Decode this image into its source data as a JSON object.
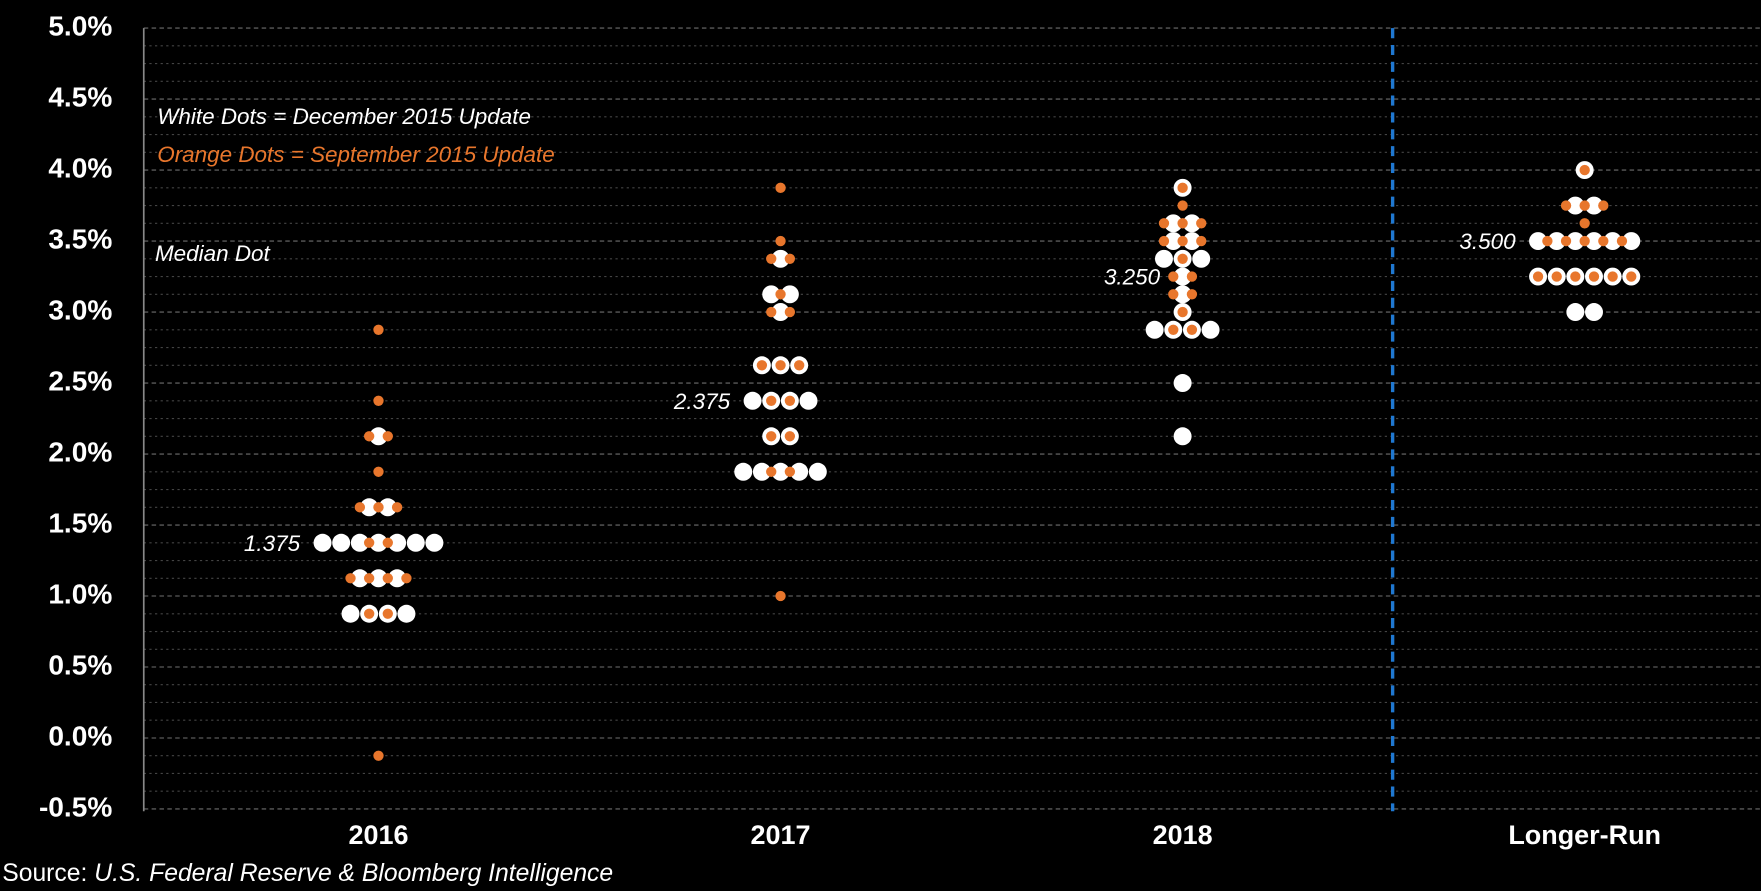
{
  "chart_data": {
    "type": "dot",
    "categories": [
      "2016",
      "2017",
      "2018",
      "Longer-Run"
    ],
    "series": [
      {
        "name": "White Dots = December 2015 Update",
        "color": "#ffffff",
        "values": [
          [
            2.125,
            1.625,
            1.625,
            1.375,
            1.375,
            1.375,
            1.375,
            1.375,
            1.375,
            1.375,
            1.125,
            1.125,
            1.125,
            0.875,
            0.875,
            0.875,
            0.875
          ],
          [
            3.375,
            3.125,
            3.125,
            3.0,
            2.625,
            2.625,
            2.625,
            2.375,
            2.375,
            2.375,
            2.375,
            2.125,
            2.125,
            1.875,
            1.875,
            1.875,
            1.875,
            1.875
          ],
          [
            3.875,
            3.625,
            3.625,
            3.5,
            3.5,
            3.375,
            3.375,
            3.375,
            3.25,
            3.125,
            3.0,
            2.875,
            2.875,
            2.875,
            2.875,
            2.5,
            2.125
          ],
          [
            4.0,
            3.75,
            3.75,
            3.5,
            3.5,
            3.5,
            3.5,
            3.5,
            3.5,
            3.25,
            3.25,
            3.25,
            3.25,
            3.25,
            3.25,
            3.0,
            3.0
          ]
        ]
      },
      {
        "name": "Orange Dots = September 2015 Update",
        "color": "#e8762c",
        "values": [
          [
            2.875,
            2.375,
            2.125,
            2.125,
            1.875,
            1.625,
            1.625,
            1.625,
            1.375,
            1.375,
            1.125,
            1.125,
            1.125,
            1.125,
            0.875,
            0.875,
            -0.125
          ],
          [
            3.875,
            3.5,
            3.375,
            3.375,
            3.125,
            3.0,
            3.0,
            2.625,
            2.625,
            2.625,
            2.375,
            2.375,
            2.125,
            2.125,
            1.875,
            1.875,
            1.0
          ],
          [
            3.875,
            3.75,
            3.625,
            3.625,
            3.625,
            3.5,
            3.5,
            3.5,
            3.375,
            3.25,
            3.25,
            3.125,
            3.125,
            3.0,
            2.875,
            2.875
          ],
          [
            4.0,
            3.75,
            3.75,
            3.75,
            3.625,
            3.5,
            3.5,
            3.5,
            3.5,
            3.5,
            3.25,
            3.25,
            3.25,
            3.25,
            3.25,
            3.25
          ]
        ]
      }
    ],
    "median_title": "Median Dot",
    "medians": [
      1.375,
      2.375,
      3.25,
      3.5
    ],
    "value_labels": [
      "1.375",
      "2.375",
      "3.250",
      "3.500"
    ],
    "ylim": [
      -0.5,
      5.0
    ],
    "yticks": [
      {
        "value": -0.5,
        "label": "-0.5%"
      },
      {
        "value": 0.0,
        "label": "0.0%"
      },
      {
        "value": 0.5,
        "label": "0.5%"
      },
      {
        "value": 1.0,
        "label": "1.0%"
      },
      {
        "value": 1.5,
        "label": "1.5%"
      },
      {
        "value": 2.0,
        "label": "2.0%"
      },
      {
        "value": 2.5,
        "label": "2.5%"
      },
      {
        "value": 3.0,
        "label": "3.0%"
      },
      {
        "value": 3.5,
        "label": "3.5%"
      },
      {
        "value": 4.0,
        "label": "4.0%"
      },
      {
        "value": 4.5,
        "label": "4.5%"
      },
      {
        "value": 5.0,
        "label": "5.0%"
      }
    ],
    "grid": true,
    "source_label": "Source:",
    "source": "U.S. Federal Reserve & Bloomberg Intelligence"
  }
}
